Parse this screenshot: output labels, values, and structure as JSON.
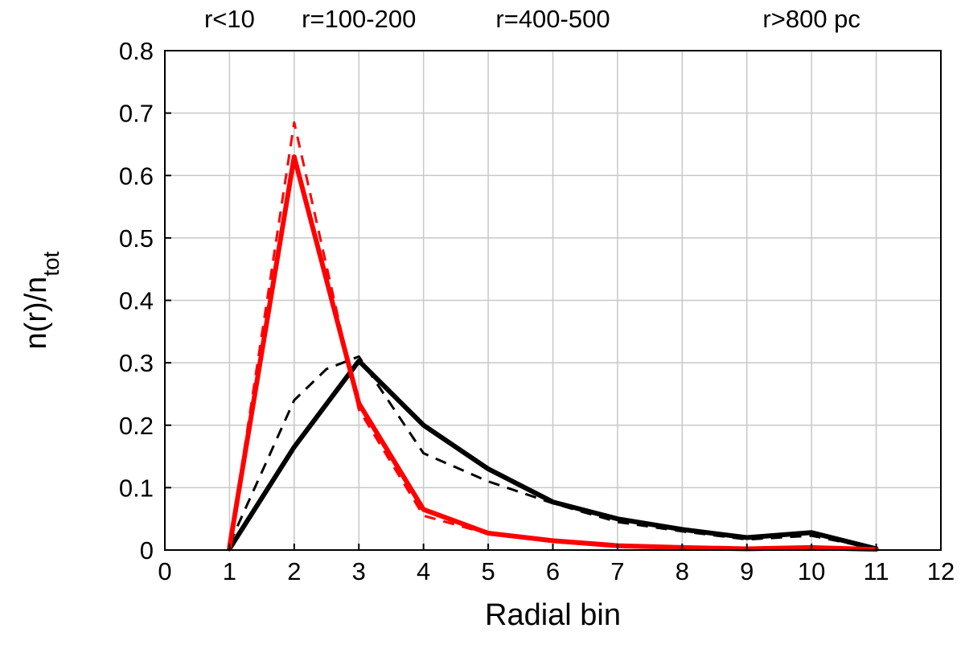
{
  "chart_data": {
    "type": "line",
    "xlabel": "Radial bin",
    "ylabel": "n(r)/n",
    "ylabel_sub": "tot",
    "xlim": [
      0,
      12
    ],
    "ylim": [
      0,
      0.8
    ],
    "xticks": [
      0,
      1,
      2,
      3,
      4,
      5,
      6,
      7,
      8,
      9,
      10,
      11,
      12
    ],
    "yticks": [
      0,
      0.1,
      0.2,
      0.3,
      0.4,
      0.5,
      0.6,
      0.7,
      0.8
    ],
    "grid": true,
    "top_labels": [
      {
        "text": "r<10",
        "x": 1
      },
      {
        "text": "r=100-200",
        "x": 3
      },
      {
        "text": "r=400-500",
        "x": 6
      },
      {
        "text": "r>800 pc",
        "x": 10
      }
    ],
    "series": [
      {
        "color": "#ff0000",
        "style": "solid",
        "x": [
          1,
          2,
          3,
          4,
          5,
          6,
          7,
          8,
          9,
          10,
          11
        ],
        "y": [
          0.005,
          0.63,
          0.235,
          0.065,
          0.027,
          0.015,
          0.007,
          0.004,
          0.002,
          0.004,
          0.001
        ]
      },
      {
        "color": "#ff0000",
        "style": "dashed",
        "x": [
          1,
          2,
          3,
          4,
          5,
          6,
          7,
          8,
          9,
          10,
          11
        ],
        "y": [
          0.005,
          0.685,
          0.225,
          0.055,
          0.026,
          0.013,
          0.006,
          0.003,
          0.002,
          0.003,
          0.001
        ]
      },
      {
        "color": "#000000",
        "style": "solid",
        "x": [
          1,
          2,
          3,
          4,
          5,
          6,
          7,
          8,
          9,
          10,
          11
        ],
        "y": [
          0.002,
          0.165,
          0.303,
          0.2,
          0.13,
          0.077,
          0.05,
          0.033,
          0.02,
          0.028,
          0.002
        ]
      },
      {
        "color": "#000000",
        "style": "dashed",
        "x": [
          1,
          2,
          2.5,
          3,
          4,
          5,
          6,
          7,
          8,
          9,
          10,
          11
        ],
        "y": [
          0.01,
          0.24,
          0.29,
          0.31,
          0.155,
          0.11,
          0.075,
          0.045,
          0.03,
          0.017,
          0.023,
          0.002
        ]
      }
    ]
  }
}
